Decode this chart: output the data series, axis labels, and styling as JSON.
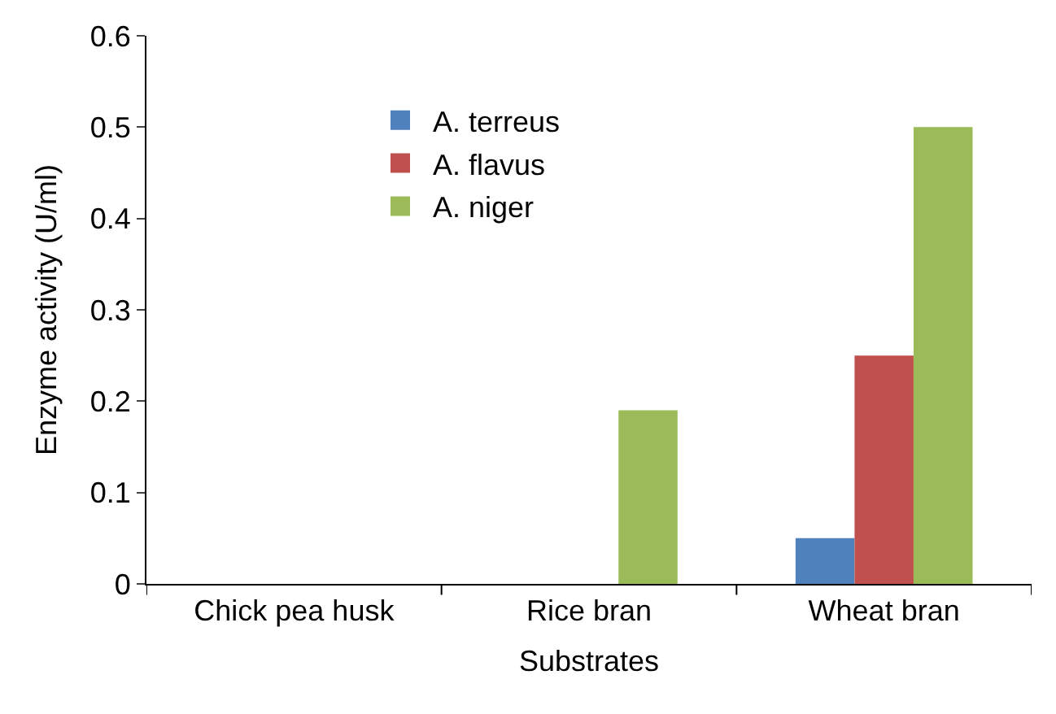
{
  "chart_data": {
    "type": "bar",
    "xlabel": "Substrates",
    "ylabel": "Enzyme activity (U/ml)",
    "categories": [
      "Chick pea husk",
      "Rice bran",
      "Wheat bran"
    ],
    "series": [
      {
        "name": "A. terreus",
        "color": "#4f81bd",
        "values": [
          0,
          0,
          0.05
        ]
      },
      {
        "name": "A. flavus",
        "color": "#c0504d",
        "values": [
          0,
          0,
          0.25
        ]
      },
      {
        "name": "A. niger",
        "color": "#9bbb59",
        "values": [
          0,
          0.19,
          0.5
        ]
      }
    ],
    "ylim": [
      0,
      0.6
    ],
    "yticks": [
      0,
      0.1,
      0.2,
      0.3,
      0.4,
      0.5,
      0.6
    ],
    "legend": "top center"
  }
}
